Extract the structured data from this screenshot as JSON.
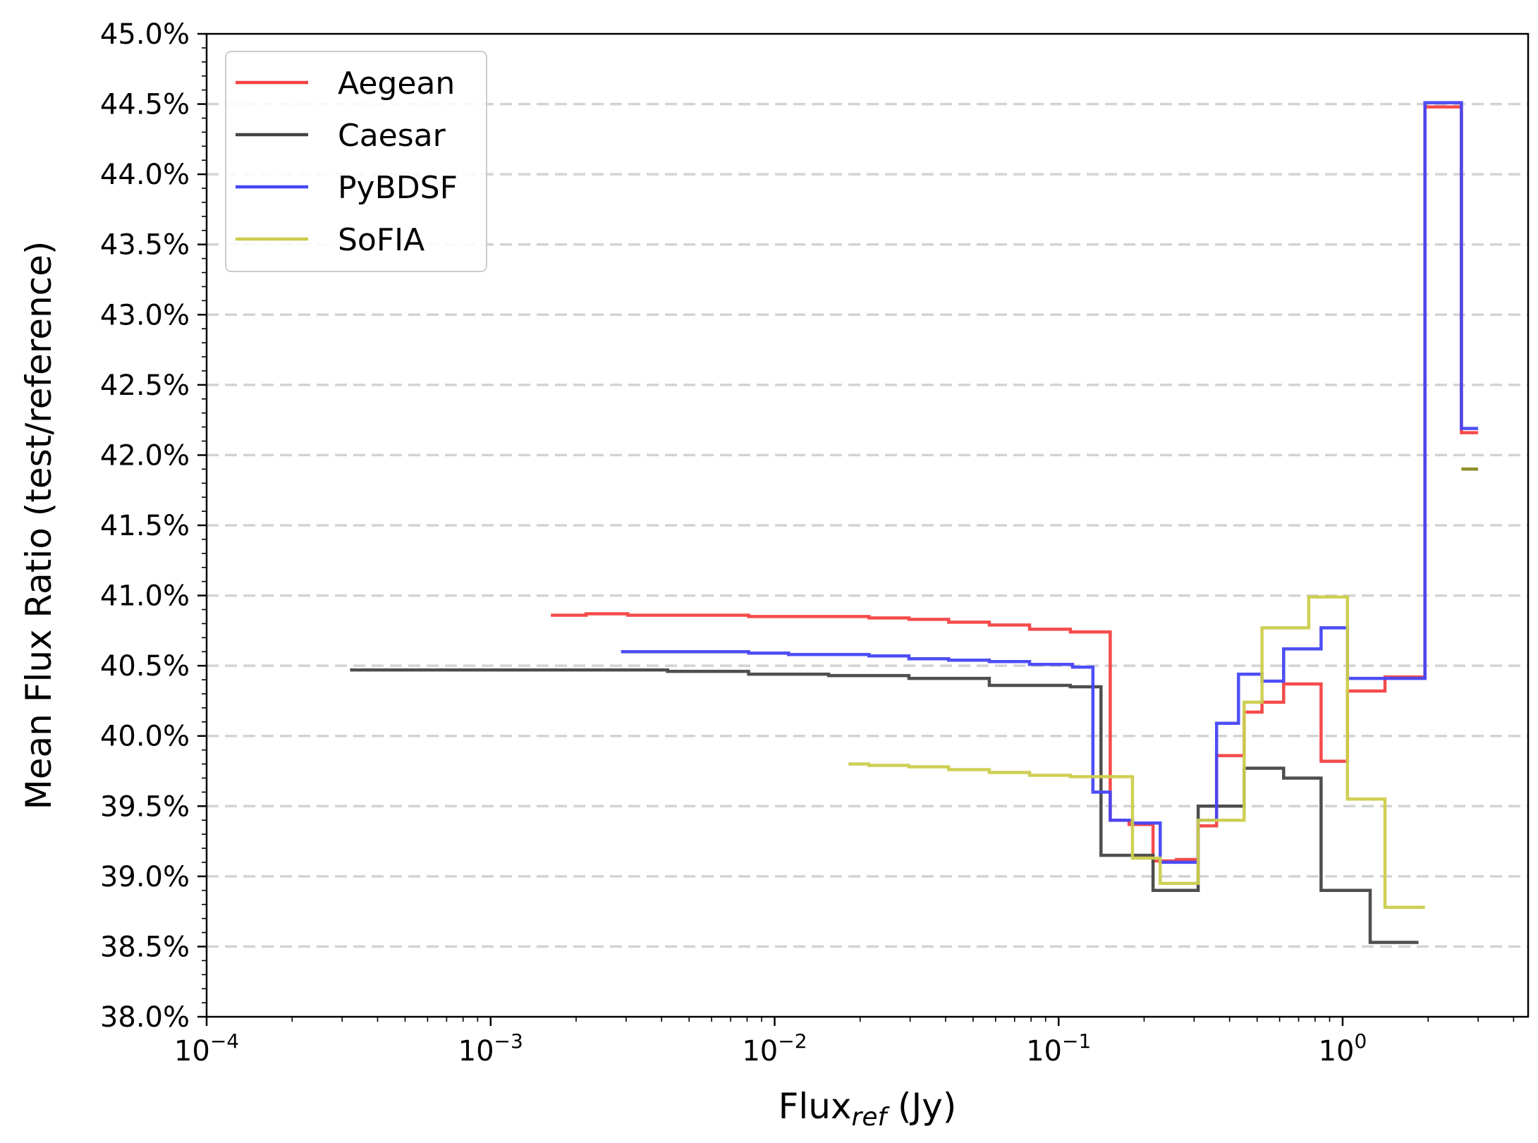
{
  "chart_data": {
    "type": "line",
    "step": true,
    "xscale": "log",
    "xlim": [
      0.0001,
      4.5
    ],
    "ylim": [
      38.0,
      45.0
    ],
    "xlabel": {
      "main": "Flux",
      "sub": "ref",
      "suffix": " (Jy)"
    },
    "ylabel": "Mean Flux Ratio (test/reference)",
    "x_ticks": [
      {
        "value": 0.0001,
        "base": "10",
        "exp": "−4"
      },
      {
        "value": 0.001,
        "base": "10",
        "exp": "−3"
      },
      {
        "value": 0.01,
        "base": "10",
        "exp": "−2"
      },
      {
        "value": 0.1,
        "base": "10",
        "exp": "−1"
      },
      {
        "value": 1,
        "base": "10",
        "exp": "0"
      }
    ],
    "y_ticks": [
      {
        "value": 38.0,
        "label": "38.0%"
      },
      {
        "value": 38.5,
        "label": "38.5%"
      },
      {
        "value": 39.0,
        "label": "39.0%"
      },
      {
        "value": 39.5,
        "label": "39.5%"
      },
      {
        "value": 40.0,
        "label": "40.0%"
      },
      {
        "value": 40.5,
        "label": "40.5%"
      },
      {
        "value": 41.0,
        "label": "41.0%"
      },
      {
        "value": 41.5,
        "label": "41.5%"
      },
      {
        "value": 42.0,
        "label": "42.0%"
      },
      {
        "value": 42.5,
        "label": "42.5%"
      },
      {
        "value": 43.0,
        "label": "43.0%"
      },
      {
        "value": 43.5,
        "label": "43.5%"
      },
      {
        "value": 44.0,
        "label": "44.0%"
      },
      {
        "value": 44.5,
        "label": "44.5%"
      },
      {
        "value": 45.0,
        "label": "45.0%"
      }
    ],
    "grid": {
      "y": true,
      "x": false,
      "style": "dashed"
    },
    "legend_position": "upper-left",
    "series": [
      {
        "name": "Aegean",
        "color": "#f44141",
        "x": [
          0.00163,
          0.00217,
          0.00304,
          0.0042,
          0.0058,
          0.0081,
          0.0112,
          0.0155,
          0.0215,
          0.0297,
          0.041,
          0.057,
          0.079,
          0.11,
          0.152,
          0.177,
          0.215,
          0.26,
          0.31,
          0.36,
          0.45,
          0.52,
          0.62,
          0.84,
          1.04,
          1.41,
          1.95,
          2.62,
          3.0
        ],
        "y": [
          40.86,
          40.87,
          40.86,
          40.86,
          40.86,
          40.85,
          40.85,
          40.85,
          40.84,
          40.83,
          40.81,
          40.79,
          40.76,
          40.74,
          39.4,
          39.37,
          39.11,
          39.12,
          39.36,
          39.86,
          40.17,
          40.24,
          40.37,
          39.82,
          40.32,
          40.42,
          44.48,
          42.16,
          42.16
        ]
      },
      {
        "name": "Caesar",
        "color": "#444444",
        "x": [
          0.00032,
          0.00217,
          0.0042,
          0.0081,
          0.0155,
          0.0297,
          0.057,
          0.11,
          0.141,
          0.215,
          0.31,
          0.45,
          0.62,
          0.84,
          1.04,
          1.25,
          1.85
        ],
        "y": [
          40.47,
          40.47,
          40.46,
          40.44,
          40.43,
          40.41,
          40.36,
          40.35,
          39.15,
          38.9,
          39.5,
          39.77,
          39.7,
          38.9,
          38.9,
          38.53,
          38.53
        ]
      },
      {
        "name": "PyBDSF",
        "color": "#4545f5",
        "x": [
          0.00288,
          0.0042,
          0.0058,
          0.0081,
          0.0112,
          0.0155,
          0.0215,
          0.0297,
          0.041,
          0.057,
          0.079,
          0.112,
          0.132,
          0.152,
          0.182,
          0.228,
          0.31,
          0.36,
          0.43,
          0.52,
          0.62,
          0.84,
          1.04,
          1.41,
          1.95,
          2.62,
          3.0
        ],
        "y": [
          40.6,
          40.6,
          40.6,
          40.59,
          40.58,
          40.58,
          40.57,
          40.55,
          40.54,
          40.53,
          40.51,
          40.49,
          39.6,
          39.4,
          39.38,
          39.1,
          39.4,
          40.09,
          40.44,
          40.39,
          40.62,
          40.77,
          40.41,
          40.41,
          44.51,
          42.19,
          42.19
        ]
      },
      {
        "name": "SoFIA",
        "color": "#cccc4c",
        "x": [
          0.0182,
          0.0215,
          0.0297,
          0.041,
          0.057,
          0.079,
          0.11,
          0.152,
          0.182,
          0.228,
          0.31,
          0.36,
          0.45,
          0.52,
          0.62,
          0.76,
          1.04,
          1.41,
          1.95
        ],
        "y": [
          39.8,
          39.79,
          39.78,
          39.76,
          39.74,
          39.72,
          39.71,
          39.71,
          39.13,
          38.95,
          39.4,
          39.4,
          40.24,
          40.77,
          40.77,
          40.99,
          39.55,
          38.78,
          38.78
        ]
      },
      {
        "name": "",
        "color": "#8a8a1f",
        "x": [
          2.62,
          3.0
        ],
        "y": [
          41.9,
          41.9
        ]
      }
    ]
  }
}
